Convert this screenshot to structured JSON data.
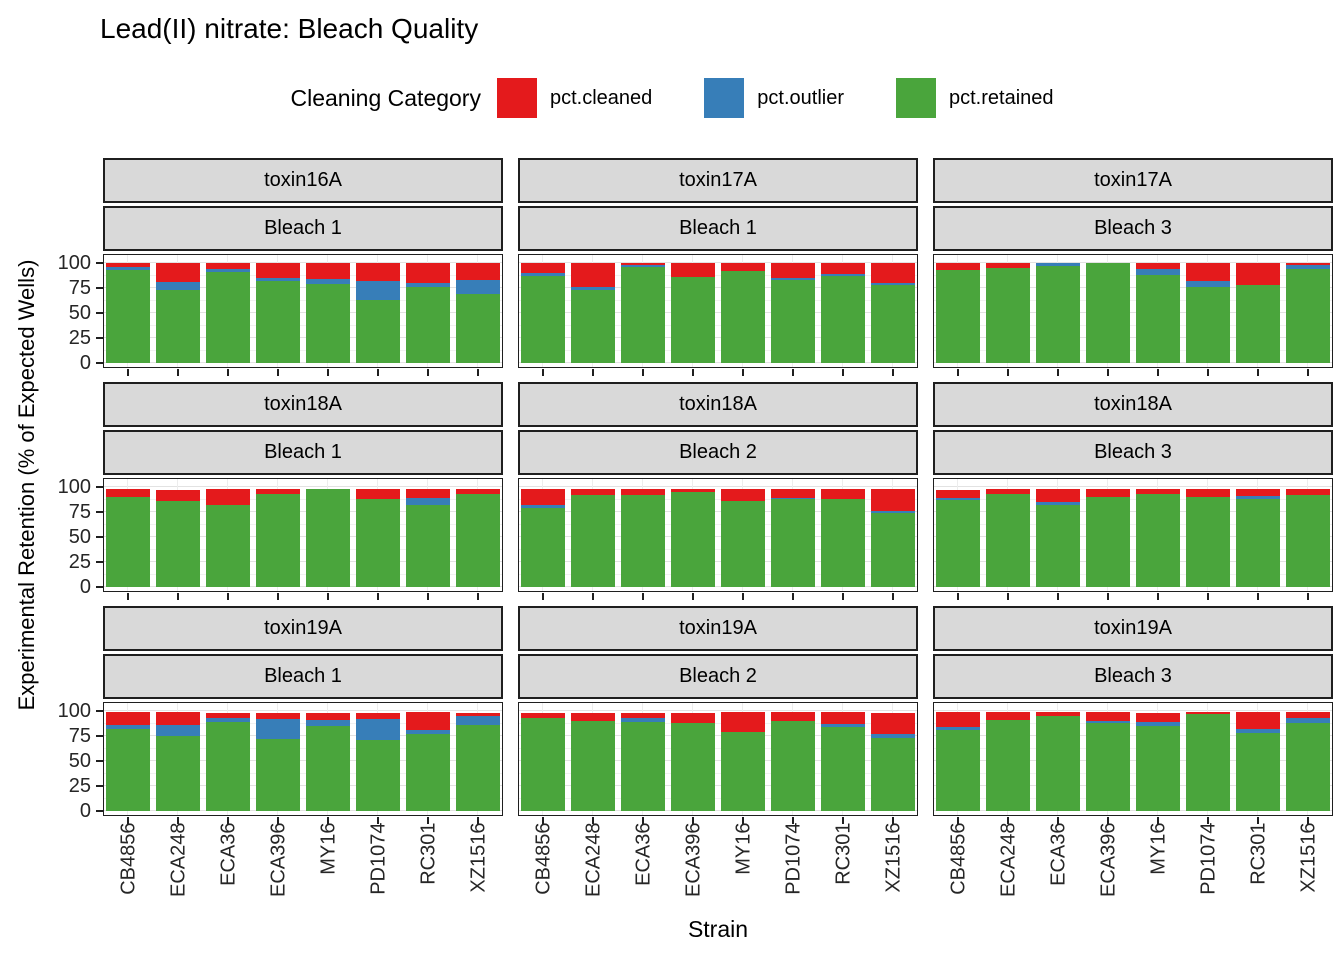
{
  "title": "Lead(II) nitrate: Bleach Quality",
  "legend": {
    "title": "Cleaning Category",
    "items": [
      {
        "name": "cleaned-swatch",
        "label": "pct.cleaned",
        "color": "#E41A1C"
      },
      {
        "name": "outlier-swatch",
        "label": "pct.outlier",
        "color": "#377EB8"
      },
      {
        "name": "retained-swatch",
        "label": "pct.retained",
        "color": "#4AA53C"
      }
    ]
  },
  "chart_data": {
    "type": "bar",
    "stacked": true,
    "title": "Lead(II) nitrate: Bleach Quality",
    "xlabel": "Strain",
    "ylabel": "Experimental Retention (% of Expected Wells)",
    "categories": [
      "CB4856",
      "ECA248",
      "ECA36",
      "ECA396",
      "MY16",
      "PD1074",
      "RC301",
      "XZ1516"
    ],
    "y_ticks": [
      100,
      75,
      50,
      25,
      0
    ],
    "ylim": [
      0,
      100
    ],
    "grid": true,
    "legend_position": "top",
    "series_order": [
      "pct.cleaned",
      "pct.outlier",
      "pct.retained"
    ],
    "series_colors": {
      "pct.cleaned": "#E41A1C",
      "pct.outlier": "#377EB8",
      "pct.retained": "#4AA53C"
    },
    "facet_layout": {
      "rows": 3,
      "cols": 3,
      "row_var": "toxin",
      "col_var": "bleach"
    },
    "facets": [
      {
        "grid_row": 1,
        "grid_col": 1,
        "toxin": "toxin16A",
        "bleach": "Bleach 1",
        "series": {
          "pct.cleaned": [
            4,
            19,
            6,
            15,
            16,
            18,
            20,
            17
          ],
          "pct.outlier": [
            3,
            8,
            3,
            3,
            5,
            19,
            4,
            14
          ],
          "pct.retained": [
            93,
            73,
            91,
            82,
            79,
            63,
            76,
            69
          ]
        }
      },
      {
        "grid_row": 1,
        "grid_col": 2,
        "toxin": "toxin17A",
        "bleach": "Bleach 1",
        "series": {
          "pct.cleaned": [
            10,
            24,
            2,
            14,
            8,
            15,
            11,
            20
          ],
          "pct.outlier": [
            3,
            3,
            2,
            0,
            0,
            2,
            2,
            2
          ],
          "pct.retained": [
            87,
            73,
            96,
            86,
            92,
            83,
            87,
            78
          ]
        }
      },
      {
        "grid_row": 1,
        "grid_col": 3,
        "toxin": "toxin17A",
        "bleach": "Bleach 3",
        "series": {
          "pct.cleaned": [
            7,
            5,
            0,
            0,
            6,
            18,
            22,
            2
          ],
          "pct.outlier": [
            0,
            0,
            3,
            0,
            6,
            6,
            0,
            4
          ],
          "pct.retained": [
            93,
            95,
            97,
            100,
            88,
            76,
            78,
            94
          ]
        }
      },
      {
        "grid_row": 2,
        "grid_col": 1,
        "toxin": "toxin18A",
        "bleach": "Bleach 1",
        "series": {
          "pct.cleaned": [
            8,
            11,
            16,
            5,
            0,
            10,
            9,
            5
          ],
          "pct.outlier": [
            0,
            0,
            0,
            0,
            0,
            0,
            7,
            0
          ],
          "pct.retained": [
            90,
            86,
            82,
            93,
            98,
            88,
            82,
            93
          ]
        }
      },
      {
        "grid_row": 2,
        "grid_col": 2,
        "toxin": "toxin18A",
        "bleach": "Bleach 2",
        "series": {
          "pct.cleaned": [
            16,
            6,
            6,
            3,
            12,
            9,
            10,
            22
          ],
          "pct.outlier": [
            3,
            0,
            0,
            0,
            0,
            1,
            0,
            2
          ],
          "pct.retained": [
            79,
            92,
            92,
            95,
            86,
            88,
            88,
            74
          ]
        }
      },
      {
        "grid_row": 2,
        "grid_col": 3,
        "toxin": "toxin18A",
        "bleach": "Bleach 3",
        "series": {
          "pct.cleaned": [
            8,
            5,
            13,
            8,
            5,
            8,
            7,
            6
          ],
          "pct.outlier": [
            2,
            0,
            3,
            0,
            0,
            0,
            3,
            0
          ],
          "pct.retained": [
            87,
            93,
            82,
            90,
            93,
            90,
            88,
            92
          ]
        }
      },
      {
        "grid_row": 3,
        "grid_col": 1,
        "toxin": "toxin19A",
        "bleach": "Bleach 1",
        "series": {
          "pct.cleaned": [
            13,
            13,
            5,
            6,
            7,
            6,
            18,
            3
          ],
          "pct.outlier": [
            4,
            11,
            4,
            20,
            6,
            21,
            4,
            9
          ],
          "pct.retained": [
            82,
            75,
            89,
            72,
            85,
            71,
            77,
            86
          ]
        }
      },
      {
        "grid_row": 3,
        "grid_col": 2,
        "toxin": "toxin19A",
        "bleach": "Bleach 2",
        "series": {
          "pct.cleaned": [
            5,
            8,
            5,
            10,
            20,
            9,
            12,
            21
          ],
          "pct.outlier": [
            0,
            0,
            4,
            0,
            0,
            0,
            3,
            4
          ],
          "pct.retained": [
            93,
            90,
            89,
            88,
            79,
            90,
            84,
            73
          ]
        }
      },
      {
        "grid_row": 3,
        "grid_col": 3,
        "toxin": "toxin19A",
        "bleach": "Bleach 3",
        "series": {
          "pct.cleaned": [
            15,
            8,
            4,
            9,
            9,
            2,
            17,
            6
          ],
          "pct.outlier": [
            3,
            0,
            0,
            2,
            4,
            0,
            4,
            5
          ],
          "pct.retained": [
            81,
            91,
            95,
            88,
            85,
            97,
            78,
            88
          ]
        }
      }
    ]
  }
}
